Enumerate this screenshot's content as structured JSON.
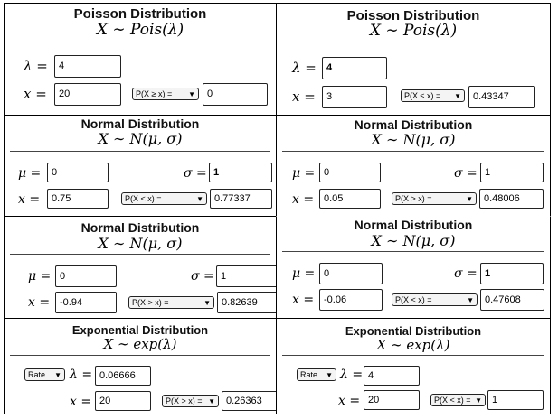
{
  "panels": {
    "p1": {
      "title": "Poisson Distribution",
      "formula": "X ∼ Pois(λ)",
      "param_symbol": "λ",
      "param_value": "4",
      "x_symbol": "x",
      "x_value": "20",
      "prob_option": "P(X ≥ x) =",
      "result": "0"
    },
    "p2": {
      "title": "Poisson Distribution",
      "formula": "X ∼ Pois(λ)",
      "param_symbol": "λ",
      "param_value": "4",
      "x_symbol": "x",
      "x_value": "3",
      "prob_option": "P(X ≤ x) =",
      "result": "0.43347"
    },
    "n1": {
      "title": "Normal Distribution",
      "formula": "X ∼ N(μ, σ)",
      "mu_symbol": "μ",
      "mu_value": "0",
      "sigma_symbol": "σ",
      "sigma_value": "1",
      "x_symbol": "x",
      "x_value": "0.75",
      "prob_option": "P(X < x) =",
      "result": "0.77337"
    },
    "n2": {
      "title": "Normal Distribution",
      "formula": "X ∼ N(μ, σ)",
      "mu_symbol": "μ",
      "mu_value": "0",
      "sigma_symbol": "σ",
      "sigma_value": "1",
      "x_symbol": "x",
      "x_value": "0.05",
      "prob_option": "P(X > x) =",
      "result": "0.48006"
    },
    "n3": {
      "title": "Normal Distribution",
      "formula": "X ∼ N(μ, σ)",
      "mu_symbol": "μ",
      "mu_value": "0",
      "sigma_symbol": "σ",
      "sigma_value": "1",
      "x_symbol": "x",
      "x_value": "-0.94",
      "prob_option": "P(X > x) =",
      "result": "0.82639"
    },
    "n4": {
      "title": "Normal Distribution",
      "formula": "X ∼ N(μ, σ)",
      "mu_symbol": "μ",
      "mu_value": "0",
      "sigma_symbol": "σ",
      "sigma_value": "1",
      "x_symbol": "x",
      "x_value": "-0.06",
      "prob_option": "P(X < x) =",
      "result": "0.47608"
    },
    "e1": {
      "title": "Exponential Distribution",
      "formula": "X ∼ exp(λ)",
      "mode_option": "Rate",
      "param_symbol": "λ",
      "param_value": "0.06666",
      "x_symbol": "x",
      "x_value": "20",
      "prob_option": "P(X > x) =",
      "result": "0.26363"
    },
    "e2": {
      "title": "Exponential Distribution",
      "formula": "X ∼ exp(λ)",
      "mode_option": "Rate",
      "param_symbol": "λ",
      "param_value": "4",
      "x_symbol": "x",
      "x_value": "20",
      "prob_option": "P(X < x) =",
      "result": "1"
    }
  }
}
